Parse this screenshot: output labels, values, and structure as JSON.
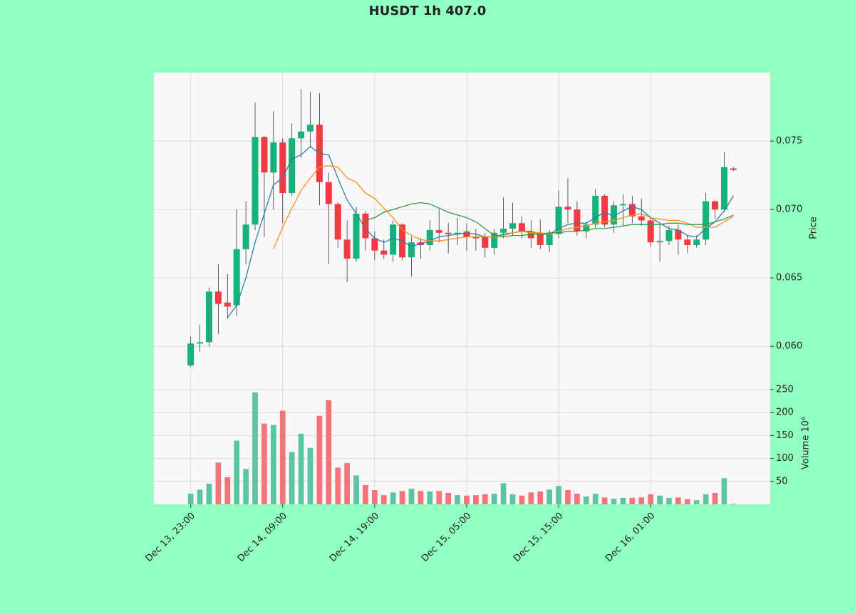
{
  "chart_data": {
    "type": "candlestick",
    "title": "HUSDT 1h 407.0",
    "categories": [
      "Dec 13, 23:00",
      null,
      null,
      null,
      null,
      null,
      null,
      null,
      null,
      null,
      "Dec 14, 09:00",
      null,
      null,
      null,
      null,
      null,
      null,
      null,
      null,
      null,
      "Dec 14, 19:00",
      null,
      null,
      null,
      null,
      null,
      null,
      null,
      null,
      null,
      "Dec 15, 05:00",
      null,
      null,
      null,
      null,
      null,
      null,
      null,
      null,
      null,
      "Dec 15, 15:00",
      null,
      null,
      null,
      null,
      null,
      null,
      null,
      null,
      null,
      "Dec 16, 01:00",
      null,
      null,
      null,
      null,
      null,
      null,
      null,
      null,
      null
    ],
    "xlim": [
      -4,
      63
    ],
    "ylabel": "Price",
    "ylim": [
      0.0572,
      0.08
    ],
    "yticks": [
      {
        "value": 0.06,
        "label": "0.060"
      },
      0.065,
      {
        "value": 0.07,
        "label": "0.070"
      },
      0.075
    ],
    "grid": true,
    "rising_color": "#16b27a",
    "falling_color": "#f23a43",
    "open": [
      0.0586,
      0.0602,
      0.0603,
      0.064,
      0.0632,
      0.063,
      0.0671,
      0.0689,
      0.0753,
      0.0727,
      0.0749,
      0.0712,
      0.0752,
      0.0757,
      0.0762,
      0.072,
      0.0704,
      0.0678,
      0.0664,
      0.0697,
      0.0679,
      0.067,
      0.0667,
      0.0689,
      0.0665,
      0.0676,
      0.0674,
      0.0685,
      0.0683,
      0.0682,
      0.0684,
      0.068,
      0.068,
      0.0672,
      0.0683,
      0.0686,
      0.069,
      0.0684,
      0.0682,
      0.0674,
      0.0682,
      0.0702,
      0.07,
      0.0684,
      0.0689,
      0.071,
      0.0689,
      0.0703,
      0.0704,
      0.0695,
      0.0692,
      0.0676,
      0.0677,
      0.0685,
      0.0678,
      0.0674,
      0.0678,
      0.0706,
      0.07,
      0.073
    ],
    "high": [
      0.0607,
      0.0616,
      0.0643,
      0.066,
      0.0653,
      0.07,
      0.0706,
      0.0778,
      0.0754,
      0.0772,
      0.0752,
      0.0763,
      0.0788,
      0.0786,
      0.0785,
      0.0727,
      0.0705,
      0.0692,
      0.0702,
      0.0699,
      0.0684,
      0.0678,
      0.0692,
      0.069,
      0.068,
      0.0679,
      0.0692,
      0.07,
      0.069,
      0.0694,
      0.069,
      0.0686,
      0.0683,
      0.0686,
      0.0709,
      0.0705,
      0.0695,
      0.0692,
      0.0693,
      0.0685,
      0.0714,
      0.0723,
      0.0706,
      0.0691,
      0.0715,
      0.0711,
      0.0706,
      0.0711,
      0.071,
      0.0708,
      0.0695,
      0.0689,
      0.0688,
      0.0689,
      0.0681,
      0.0681,
      0.0712,
      0.0707,
      0.0742,
      0.0731
    ],
    "low": [
      0.0585,
      0.0596,
      0.06,
      0.0609,
      0.062,
      0.0622,
      0.066,
      0.0685,
      0.068,
      0.07,
      0.069,
      0.071,
      0.0738,
      0.0745,
      0.0703,
      0.066,
      0.0672,
      0.0647,
      0.0662,
      0.067,
      0.0663,
      0.0664,
      0.0662,
      0.0663,
      0.0651,
      0.0664,
      0.067,
      0.0676,
      0.0668,
      0.0674,
      0.067,
      0.067,
      0.0665,
      0.0667,
      0.0679,
      0.0681,
      0.0679,
      0.0672,
      0.0671,
      0.0669,
      0.0679,
      0.069,
      0.0681,
      0.0679,
      0.0686,
      0.0687,
      0.0683,
      0.0688,
      0.069,
      0.0688,
      0.0673,
      0.0662,
      0.0674,
      0.0667,
      0.0668,
      0.0672,
      0.0674,
      0.0693,
      0.0698,
      0.0728
    ],
    "close": [
      0.0602,
      0.0603,
      0.064,
      0.0631,
      0.0629,
      0.0671,
      0.0689,
      0.0753,
      0.0727,
      0.0749,
      0.0712,
      0.0752,
      0.0757,
      0.0762,
      0.072,
      0.0704,
      0.0678,
      0.0664,
      0.0697,
      0.0679,
      0.067,
      0.0667,
      0.0689,
      0.0665,
      0.0676,
      0.0674,
      0.0685,
      0.0683,
      0.0682,
      0.0683,
      0.068,
      0.0679,
      0.0672,
      0.0683,
      0.0686,
      0.069,
      0.0684,
      0.0679,
      0.0674,
      0.0682,
      0.0702,
      0.07,
      0.0684,
      0.0689,
      0.071,
      0.0689,
      0.0703,
      0.0704,
      0.0695,
      0.0692,
      0.0676,
      0.0677,
      0.0685,
      0.0678,
      0.0674,
      0.0678,
      0.0706,
      0.07,
      0.0731,
      0.0729
    ],
    "lines": [
      {
        "color": "#2a7fa8",
        "values": [
          null,
          null,
          null,
          null,
          0.0621,
          0.063,
          0.065,
          0.0676,
          0.0697,
          0.0718,
          0.0723,
          0.0737,
          0.074,
          0.0746,
          0.0741,
          0.074,
          0.0723,
          0.0707,
          0.0697,
          0.0686,
          0.0679,
          0.0676,
          0.0679,
          0.0677,
          0.0673,
          0.0675,
          0.0677,
          0.068,
          0.0681,
          0.0682,
          0.0683,
          0.0682,
          0.068,
          0.068,
          0.0682,
          0.0683,
          0.0684,
          0.0684,
          0.0682,
          0.0682,
          0.0686,
          0.0689,
          0.069,
          0.069,
          0.0694,
          0.0698,
          0.0695,
          0.0699,
          0.0702,
          0.07,
          0.0694,
          0.069,
          0.0686,
          0.0685,
          0.0681,
          0.068,
          0.0686,
          0.0691,
          0.0699,
          0.071
        ]
      },
      {
        "color": "#ff8c1a",
        "values": [
          null,
          null,
          null,
          null,
          null,
          null,
          null,
          null,
          null,
          0.0671,
          0.0687,
          0.0701,
          0.0714,
          0.0723,
          0.0731,
          0.0732,
          0.0731,
          0.0723,
          0.072,
          0.0712,
          0.0708,
          0.0701,
          0.0694,
          0.0685,
          0.0681,
          0.0678,
          0.0677,
          0.0677,
          0.0678,
          0.0679,
          0.068,
          0.068,
          0.068,
          0.068,
          0.0681,
          0.0683,
          0.0684,
          0.0683,
          0.0683,
          0.0682,
          0.0684,
          0.0686,
          0.0687,
          0.0688,
          0.069,
          0.0691,
          0.0692,
          0.0694,
          0.0696,
          0.0697,
          0.0694,
          0.0693,
          0.0692,
          0.0692,
          0.069,
          0.0687,
          0.0687,
          0.0687,
          0.0691,
          0.0695
        ]
      },
      {
        "color": "#2e9d4a",
        "values": [
          null,
          null,
          null,
          null,
          null,
          null,
          null,
          null,
          null,
          null,
          null,
          null,
          null,
          null,
          null,
          null,
          null,
          null,
          null,
          0.0692,
          0.0694,
          0.0698,
          0.07,
          0.0702,
          0.0704,
          0.0705,
          0.0704,
          0.0701,
          0.0698,
          0.0696,
          0.0694,
          0.0691,
          0.0686,
          0.0681,
          0.068,
          0.0681,
          0.0681,
          0.0682,
          0.0682,
          0.0683,
          0.0683,
          0.0684,
          0.0684,
          0.0685,
          0.0686,
          0.0686,
          0.0687,
          0.0688,
          0.0689,
          0.0689,
          0.0689,
          0.0689,
          0.069,
          0.069,
          0.0689,
          0.0689,
          0.0689,
          0.0691,
          0.0693,
          0.0696
        ]
      }
    ],
    "volume": {
      "ylabel": "Volume  10⁶",
      "ylim": [
        0,
        250
      ],
      "yticks": [
        50,
        100,
        150,
        200,
        250
      ],
      "rising_color": "#5cc4a0",
      "falling_color": "#f6737a",
      "values": [
        23,
        32,
        45,
        91,
        59,
        139,
        77,
        244,
        176,
        173,
        204,
        114,
        154,
        123,
        193,
        227,
        80,
        90,
        63,
        42,
        31,
        20,
        26,
        29,
        34,
        29,
        28,
        29,
        25,
        20,
        19,
        20,
        22,
        23,
        46,
        22,
        19,
        26,
        28,
        32,
        40,
        31,
        23,
        17,
        23,
        15,
        12,
        14,
        14,
        15,
        22,
        19,
        14,
        15,
        11,
        9,
        22,
        25,
        57,
        1
      ]
    }
  }
}
